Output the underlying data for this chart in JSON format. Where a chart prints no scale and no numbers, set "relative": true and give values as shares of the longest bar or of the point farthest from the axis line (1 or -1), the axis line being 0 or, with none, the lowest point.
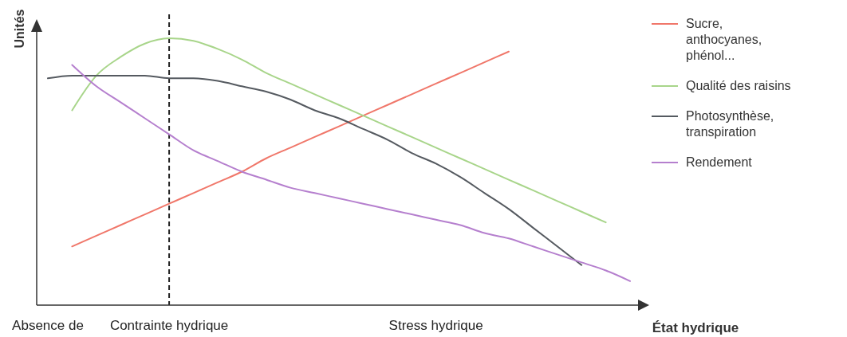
{
  "chart_data": {
    "type": "line",
    "relative": true,
    "ylabel": "Unités",
    "xlabel": "État hydrique",
    "categories": [
      "Absence de",
      null,
      null,
      null,
      null,
      "Contrainte hydrique",
      null,
      null,
      null,
      null,
      null,
      null,
      null,
      null,
      null,
      null,
      "Stress hydrique",
      null,
      null,
      null,
      null,
      null,
      null,
      null,
      null
    ],
    "ref_lines": [
      {
        "axis": "x",
        "value": "Contrainte hydrique",
        "color": "#222222",
        "line_style": "dashed"
      }
    ],
    "legend": "right",
    "line_style": "solid",
    "marker": "none",
    "grid": false,
    "series": [
      {
        "name": "Sucre, anthocyanes, phénol...",
        "color": "#f0776a",
        "values": [
          null,
          0.22,
          0.26,
          0.3,
          0.34,
          0.38,
          0.42,
          0.46,
          0.5,
          0.55,
          0.59,
          0.63,
          0.67,
          0.71,
          0.75,
          0.79,
          0.83,
          0.87,
          0.91,
          0.95,
          null,
          null,
          null,
          null,
          null
        ]
      },
      {
        "name": "Qualité des raisins",
        "color": "#a8d58a",
        "values": [
          null,
          0.73,
          0.86,
          0.93,
          0.98,
          1,
          0.99,
          0.96,
          0.92,
          0.87,
          0.83,
          0.79,
          0.75,
          0.71,
          0.67,
          0.63,
          0.59,
          0.55,
          0.51,
          0.47,
          0.43,
          0.39,
          0.35,
          0.31,
          null
        ]
      },
      {
        "name": "Photosynthèse, transpiration",
        "color": "#555a60",
        "values": [
          0.85,
          0.86,
          0.86,
          0.86,
          0.86,
          0.85,
          0.85,
          0.84,
          0.82,
          0.8,
          0.77,
          0.73,
          0.7,
          0.66,
          0.62,
          0.57,
          0.53,
          0.48,
          0.42,
          0.36,
          0.29,
          0.22,
          0.15,
          null,
          null
        ]
      },
      {
        "name": "Rendement",
        "color": "#b57fce",
        "values": [
          null,
          0.9,
          0.82,
          0.76,
          0.7,
          0.64,
          0.58,
          0.54,
          0.5,
          0.47,
          0.44,
          0.42,
          0.4,
          0.38,
          0.36,
          0.34,
          0.32,
          0.3,
          0.27,
          0.25,
          0.22,
          0.19,
          0.16,
          0.13,
          0.09
        ]
      }
    ]
  }
}
